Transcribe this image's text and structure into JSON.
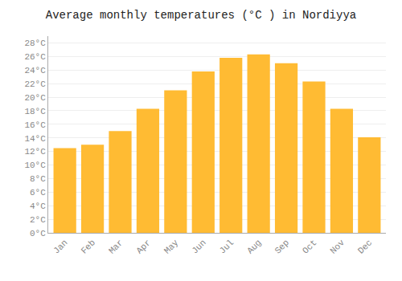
{
  "chart_data": {
    "type": "bar",
    "title": "Average monthly temperatures (°C ) in Nordiyya",
    "categories": [
      "Jan",
      "Feb",
      "Mar",
      "Apr",
      "May",
      "Jun",
      "Jul",
      "Aug",
      "Sep",
      "Oct",
      "Nov",
      "Dec"
    ],
    "values": [
      12.5,
      13.0,
      15.0,
      18.3,
      21.0,
      23.8,
      25.8,
      26.3,
      25.0,
      22.3,
      18.3,
      14.1
    ],
    "color": "#FFBB33",
    "ylim": [
      0,
      29
    ],
    "yticks": [
      {
        "value": 0,
        "label": "0°C"
      },
      {
        "value": 2,
        "label": "2°C"
      },
      {
        "value": 4,
        "label": "4°C"
      },
      {
        "value": 6,
        "label": "6°C"
      },
      {
        "value": 8,
        "label": "8°C"
      },
      {
        "value": 10,
        "label": "10°C"
      },
      {
        "value": 12,
        "label": "12°C"
      },
      {
        "value": 14,
        "label": "14°C"
      },
      {
        "value": 16,
        "label": "16°C"
      },
      {
        "value": 18,
        "label": "18°C"
      },
      {
        "value": 20,
        "label": "20°C"
      },
      {
        "value": 22,
        "label": "22°C"
      },
      {
        "value": 24,
        "label": "24°C"
      },
      {
        "value": 26,
        "label": "26°C"
      },
      {
        "value": 28,
        "label": "28°C"
      }
    ],
    "grid": true
  }
}
